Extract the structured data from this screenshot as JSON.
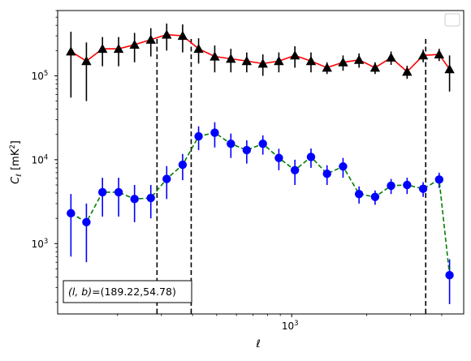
{
  "chart_data": {
    "type": "scatter",
    "xscale": "log",
    "yscale": "log",
    "xlabel": "ℓ",
    "ylabel": "C_ℓ  [mK²]",
    "ylabel_main": "C",
    "ylabel_sub": "ℓ",
    "ylabel_unit": "[mK",
    "ylabel_unit_sup": "2",
    "ylabel_unit_close": "]",
    "xlim": [
      115,
      4900
    ],
    "ylim": [
      145,
      600000
    ],
    "x_ticks": [
      {
        "value": 1000,
        "base": "10",
        "exp": "3"
      }
    ],
    "y_ticks": [
      {
        "value": 1000,
        "base": "10",
        "exp": "3"
      },
      {
        "value": 10000,
        "base": "10",
        "exp": "4"
      },
      {
        "value": 100000,
        "base": "10",
        "exp": "5"
      }
    ],
    "legend": {
      "position": "top-right",
      "entries": []
    },
    "annotation": {
      "text": "(l, b)=(189.22,54.78)",
      "prefix_italic": "(l, b)",
      "rest": "=(189.22,54.78)",
      "position": "bottom-left"
    },
    "vlines": [
      288,
      395,
      3450
    ],
    "x": [
      130,
      150,
      174,
      202,
      234,
      272,
      315,
      365,
      423,
      491,
      570,
      660,
      766,
      888,
      1030,
      1195,
      1386,
      1607,
      1863,
      2161,
      2505,
      2905,
      3369,
      3906,
      4300
    ],
    "series": [
      {
        "color": "#ff0000",
        "marker": "triangle",
        "marker_color": "#000000",
        "errorbar_color": "#000000",
        "values": [
          195000,
          150000,
          210000,
          210000,
          235000,
          270000,
          310000,
          300000,
          210000,
          170000,
          160000,
          150000,
          140000,
          150000,
          175000,
          150000,
          125000,
          145000,
          155000,
          125000,
          165000,
          112000,
          175000,
          180000,
          120000
        ],
        "err_lower": [
          140000,
          100000,
          80000,
          80000,
          90000,
          100000,
          110000,
          110000,
          70000,
          60000,
          50000,
          40000,
          40000,
          40000,
          50000,
          40000,
          20000,
          30000,
          30000,
          20000,
          30000,
          20000,
          30000,
          30000,
          55000
        ],
        "err_upper": [
          140000,
          100000,
          80000,
          80000,
          90000,
          100000,
          110000,
          110000,
          70000,
          60000,
          50000,
          40000,
          40000,
          40000,
          50000,
          40000,
          20000,
          30000,
          30000,
          20000,
          30000,
          20000,
          30000,
          30000,
          55000
        ]
      },
      {
        "color": "#008000",
        "line_style": "dashed",
        "marker": "circle",
        "marker_color": "#0000ff",
        "errorbar_color": "#0000ff",
        "values": [
          2300,
          1800,
          4100,
          4100,
          3400,
          3500,
          5900,
          8700,
          19000,
          21000,
          15500,
          13000,
          15500,
          10500,
          7500,
          10800,
          6800,
          8300,
          3900,
          3600,
          4900,
          5000,
          4500,
          5800,
          420
        ],
        "err_lower": [
          1600,
          1200,
          2000,
          2000,
          1600,
          1500,
          2500,
          3000,
          6000,
          7000,
          5000,
          4000,
          4000,
          3000,
          2500,
          2800,
          1800,
          2200,
          900,
          700,
          1000,
          1100,
          900,
          1200,
          230
        ],
        "err_upper": [
          1600,
          1200,
          2000,
          2000,
          1600,
          1500,
          2500,
          3000,
          6000,
          7000,
          5000,
          4000,
          4000,
          3000,
          2500,
          2800,
          1800,
          2200,
          900,
          700,
          1000,
          1100,
          900,
          1200,
          230
        ]
      }
    ]
  }
}
